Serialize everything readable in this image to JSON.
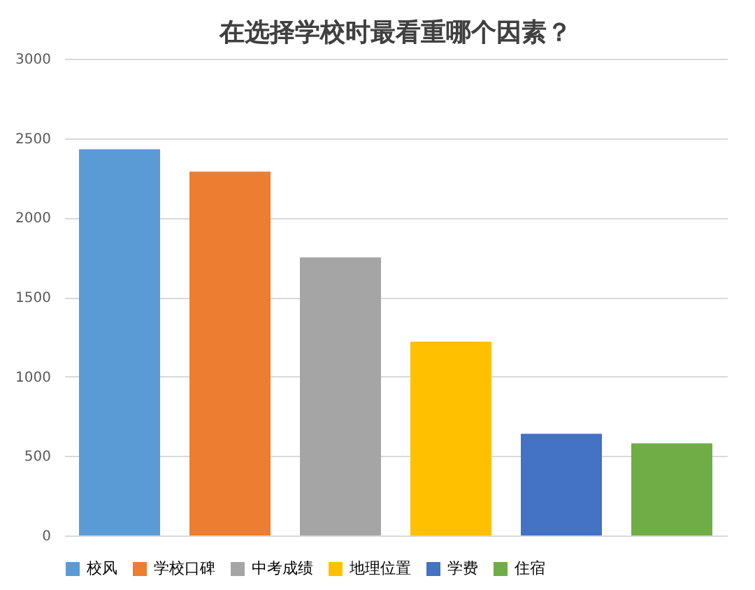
{
  "chart_data": {
    "type": "bar",
    "title": "在选择学校时最看重哪个因素？",
    "categories": [
      null,
      null,
      null,
      null,
      null,
      null
    ],
    "series": [
      {
        "name": "校风",
        "color": "#5b9bd5",
        "values": [
          2430,
          null,
          null,
          null,
          null,
          null
        ]
      },
      {
        "name": "学校口碑",
        "color": "#ed7d31",
        "values": [
          null,
          2290,
          null,
          null,
          null,
          null
        ]
      },
      {
        "name": "中考成绩",
        "color": "#a5a5a5",
        "values": [
          null,
          null,
          1750,
          null,
          null,
          null
        ]
      },
      {
        "name": "地理位置",
        "color": "#ffc000",
        "values": [
          null,
          null,
          null,
          1220,
          null,
          null
        ]
      },
      {
        "name": "学费",
        "color": "#4472c4",
        "values": [
          null,
          null,
          null,
          null,
          640,
          null
        ]
      },
      {
        "name": "住宿",
        "color": "#70ad47",
        "values": [
          null,
          null,
          null,
          null,
          null,
          580
        ]
      }
    ],
    "ylim": [
      0,
      3000
    ],
    "yticks": [
      0,
      500,
      1000,
      1500,
      2000,
      2500,
      3000
    ],
    "grid": "y",
    "legend": "bottom",
    "tick_labels": "y"
  }
}
